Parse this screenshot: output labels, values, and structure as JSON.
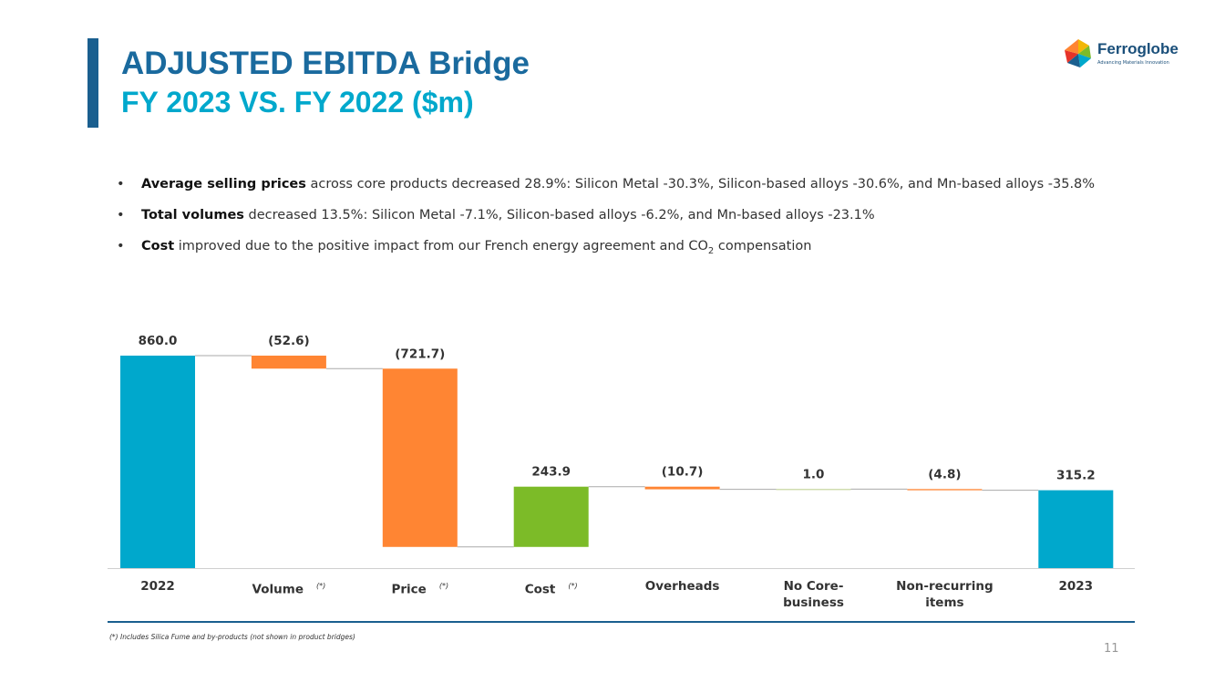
{
  "header": {
    "title": "ADJUSTED EBITDA Bridge",
    "subtitle": "FY 2023 VS. FY 2022 ($m)"
  },
  "logo": {
    "name": "Ferroglobe",
    "tagline": "Advancing Materials Innovation"
  },
  "bullets": [
    {
      "bold": "Average selling prices",
      "text": " across core products decreased 28.9%: Silicon Metal -30.3%, Silicon-based alloys -30.6%, and Mn-based alloys -35.8%"
    },
    {
      "bold": "Total volumes",
      "text": " decreased 13.5%: Silicon Metal -7.1%, Silicon-based alloys -6.2%, and Mn-based alloys -23.1%"
    },
    {
      "bold": "Cost",
      "text": " improved due to the positive impact from our French energy agreement and CO",
      "subscript": "2",
      "text_after": " compensation"
    }
  ],
  "chart_data": {
    "type": "waterfall",
    "categories": [
      "2022",
      "Volume",
      "Price",
      "Cost",
      "Overheads",
      "No Core-business",
      "Non-recurring items",
      "2023"
    ],
    "category_notes": [
      null,
      "(*)",
      "(*)",
      "(*)",
      null,
      null,
      null,
      null
    ],
    "measure": [
      "absolute",
      "relative",
      "relative",
      "relative",
      "relative",
      "relative",
      "relative",
      "absolute"
    ],
    "values": [
      860.0,
      -52.6,
      -721.7,
      243.9,
      -10.7,
      1.0,
      -4.8,
      315.2
    ],
    "value_labels": [
      "860.0",
      "(52.6)",
      "(721.7)",
      "243.9",
      "(10.7)",
      "1.0",
      "(4.8)",
      "315.2"
    ],
    "colors": [
      "#00a8cc",
      "#ff8533",
      "#ff8533",
      "#7cbb28",
      "#ff8533",
      "#b8cc88",
      "#ff8533",
      "#00a8cc"
    ],
    "connectors": true
  },
  "footnote": "(*) Includes Silica Fume and by-products (not shown in product bridges)",
  "page_number": "11"
}
